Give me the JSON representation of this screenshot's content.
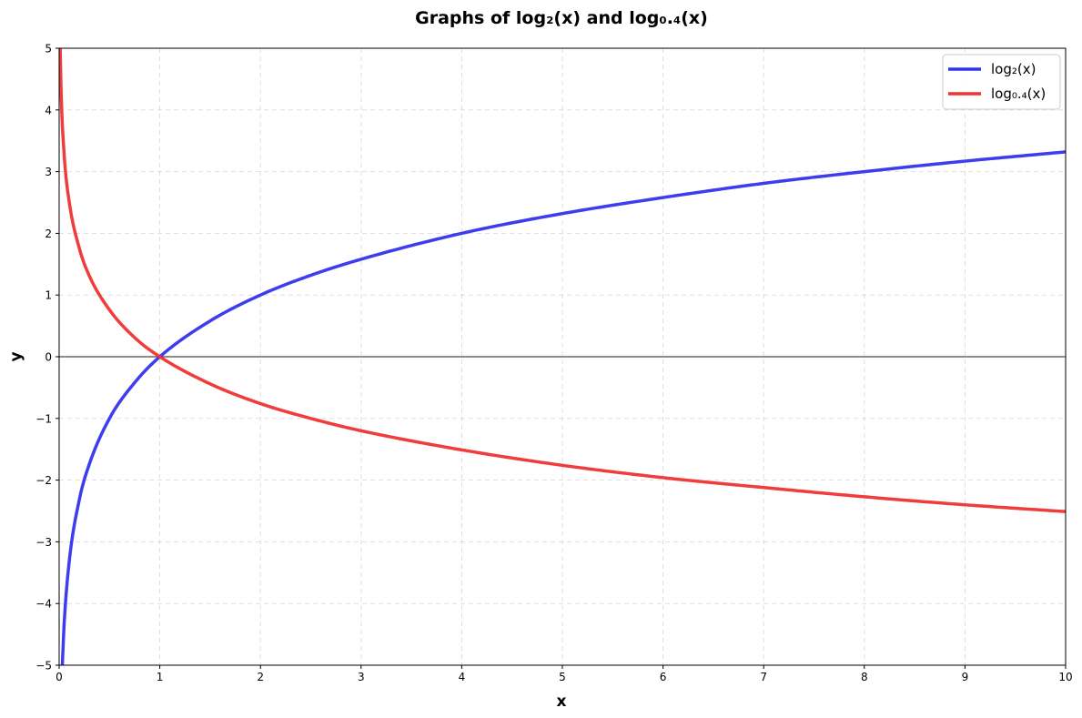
{
  "chart_data": {
    "type": "line",
    "title": "Graphs of log₂(x) and log₀.₄(x)",
    "xlabel": "x",
    "ylabel": "y",
    "xlim": [
      0,
      10
    ],
    "ylim": [
      -5,
      5
    ],
    "x_ticks": [
      "0",
      "1",
      "2",
      "3",
      "4",
      "5",
      "6",
      "7",
      "8",
      "9",
      "10"
    ],
    "y_ticks": [
      "−5",
      "−4",
      "−3",
      "−2",
      "−1",
      "0",
      "1",
      "2",
      "3",
      "4",
      "5"
    ],
    "grid": true,
    "grid_style": "dashed",
    "legend_position": "top-right",
    "series": [
      {
        "name": "log₂(x)",
        "color": "#3333ee",
        "x": [
          0.03,
          0.05,
          0.1,
          0.2,
          0.3,
          0.5,
          0.75,
          1,
          1.5,
          2,
          2.5,
          3,
          4,
          5,
          6,
          7,
          8,
          9,
          10
        ],
        "y": [
          -5.06,
          -4.32,
          -3.32,
          -2.32,
          -1.74,
          -1.0,
          -0.42,
          0.0,
          0.58,
          1.0,
          1.32,
          1.58,
          2.0,
          2.32,
          2.58,
          2.81,
          3.0,
          3.17,
          3.32
        ]
      },
      {
        "name": "log₀.₄(x)",
        "color": "#f03232",
        "x": [
          0.01,
          0.02,
          0.05,
          0.1,
          0.2,
          0.3,
          0.5,
          0.75,
          1,
          1.5,
          2,
          2.5,
          3,
          4,
          5,
          6,
          7,
          8,
          9,
          10
        ],
        "y": [
          5.03,
          4.27,
          3.27,
          2.51,
          1.76,
          1.31,
          0.76,
          0.31,
          0.0,
          -0.44,
          -0.76,
          -1.0,
          -1.2,
          -1.51,
          -1.76,
          -1.96,
          -2.12,
          -2.27,
          -2.4,
          -2.51
        ]
      }
    ]
  }
}
